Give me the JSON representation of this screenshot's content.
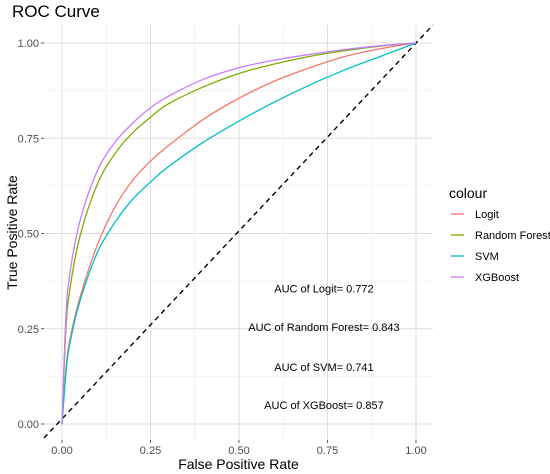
{
  "chart_data": {
    "type": "line",
    "title": "ROC Curve",
    "xlabel": "False Positive Rate",
    "ylabel": "True Positive Rate",
    "xlim": [
      0,
      1
    ],
    "ylim": [
      0,
      1
    ],
    "xticks": [
      "0.00",
      "0.25",
      "0.50",
      "0.75",
      "1.00"
    ],
    "yticks": [
      "0.00",
      "0.25",
      "0.50",
      "0.75",
      "1.00"
    ],
    "grid": true,
    "legend_title": "colour",
    "legend_position": "right",
    "series": [
      {
        "name": "Logit",
        "color": "#F8766D",
        "x": [
          0,
          0.01,
          0.02,
          0.05,
          0.1,
          0.15,
          0.2,
          0.25,
          0.3,
          0.4,
          0.5,
          0.6,
          0.7,
          0.8,
          0.9,
          1.0
        ],
        "y": [
          0,
          0.13,
          0.21,
          0.33,
          0.47,
          0.57,
          0.64,
          0.69,
          0.73,
          0.8,
          0.855,
          0.9,
          0.935,
          0.965,
          0.985,
          1.0
        ]
      },
      {
        "name": "Random Forest",
        "color": "#7CAE00",
        "x": [
          0,
          0.01,
          0.02,
          0.05,
          0.1,
          0.15,
          0.2,
          0.25,
          0.3,
          0.4,
          0.5,
          0.6,
          0.7,
          0.8,
          0.9,
          1.0
        ],
        "y": [
          0,
          0.23,
          0.34,
          0.49,
          0.63,
          0.71,
          0.765,
          0.805,
          0.84,
          0.885,
          0.92,
          0.945,
          0.965,
          0.98,
          0.992,
          1.0
        ]
      },
      {
        "name": "SVM",
        "color": "#00BFC4",
        "x": [
          0,
          0.01,
          0.02,
          0.05,
          0.1,
          0.15,
          0.2,
          0.25,
          0.3,
          0.4,
          0.5,
          0.6,
          0.7,
          0.8,
          0.9,
          1.0
        ],
        "y": [
          0,
          0.12,
          0.2,
          0.32,
          0.45,
          0.53,
          0.59,
          0.635,
          0.675,
          0.74,
          0.795,
          0.845,
          0.89,
          0.93,
          0.965,
          1.0
        ]
      },
      {
        "name": "XGBoost",
        "color": "#C77CFF",
        "x": [
          0,
          0.01,
          0.02,
          0.05,
          0.1,
          0.15,
          0.2,
          0.25,
          0.3,
          0.4,
          0.5,
          0.6,
          0.7,
          0.8,
          0.9,
          1.0
        ],
        "y": [
          0,
          0.26,
          0.38,
          0.53,
          0.665,
          0.74,
          0.79,
          0.83,
          0.86,
          0.905,
          0.935,
          0.955,
          0.97,
          0.983,
          0.993,
          1.0
        ]
      }
    ],
    "reference_line": {
      "x": [
        0,
        1
      ],
      "y": [
        0,
        1
      ],
      "style": "dashed"
    },
    "annotations": [
      {
        "text": "AUC of Logit= 0.772",
        "x": 0.74,
        "y": 0.355
      },
      {
        "text": "AUC of Random Forest= 0.843",
        "x": 0.74,
        "y": 0.255
      },
      {
        "text": "AUC of SVM= 0.741",
        "x": 0.74,
        "y": 0.15
      },
      {
        "text": "AUC of XGBoost= 0.857",
        "x": 0.74,
        "y": 0.05
      }
    ]
  }
}
